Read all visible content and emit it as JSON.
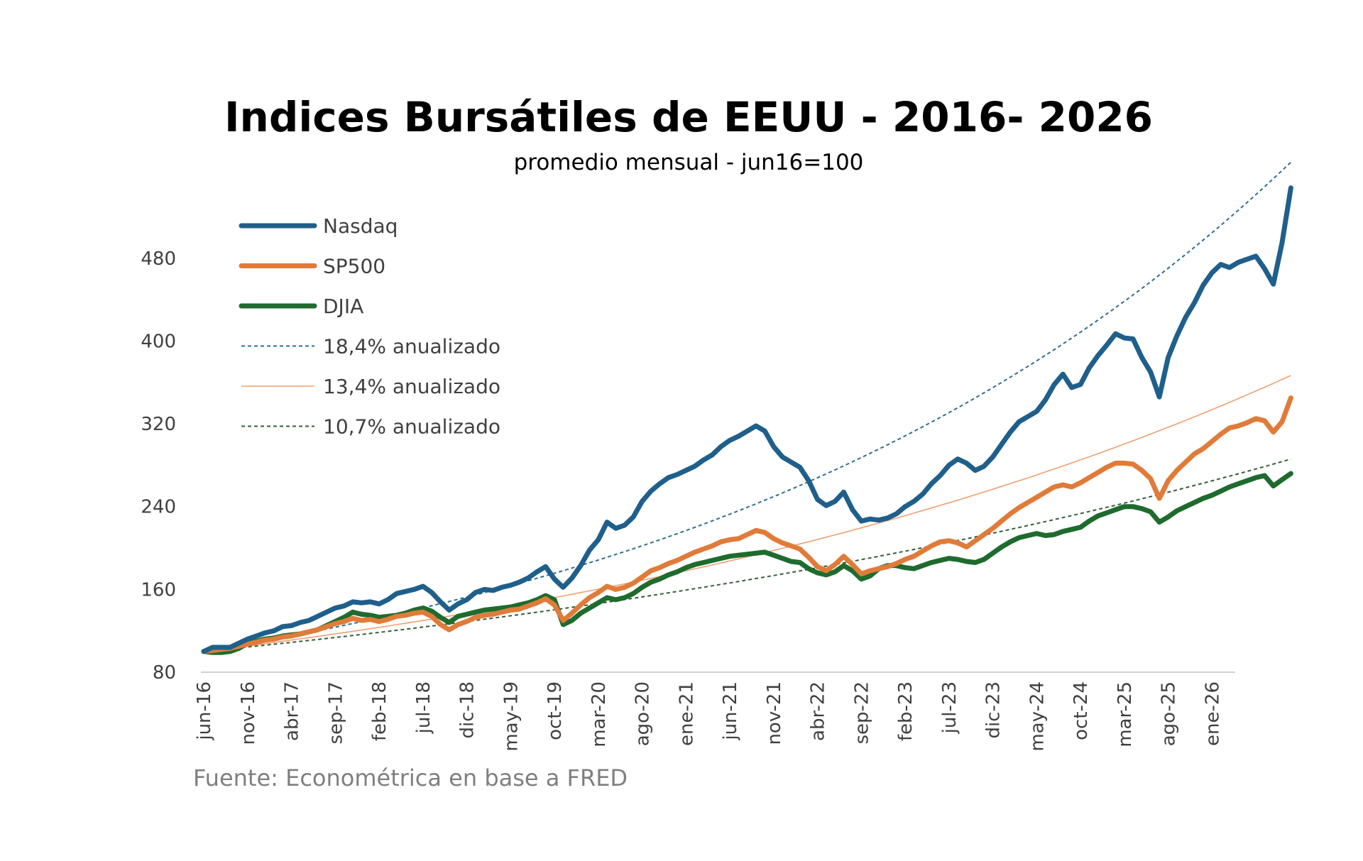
{
  "chart_data": {
    "type": "line",
    "title": "Indices Bursátiles de EEUU - 2016- 2026",
    "subtitle": "promedio mensual - jun16=100",
    "source": "Fuente: Econométrica en base a FRED",
    "x_tick_labels": [
      "jun-16",
      "nov-16",
      "abr-17",
      "sep-17",
      "feb-18",
      "jul-18",
      "dic-18",
      "may-19",
      "oct-19",
      "mar-20",
      "ago-20",
      "ene-21",
      "jun-21",
      "nov-21",
      "abr-22",
      "sep-22",
      "feb-23",
      "jul-23",
      "dic-23",
      "may-24",
      "oct-24",
      "mar-25",
      "ago-25",
      "ene-26"
    ],
    "x_start": "jun-16",
    "x_end": "may-26",
    "y_tick_labels": [
      "80",
      "160",
      "240",
      "320",
      "400",
      "480"
    ],
    "ylim": [
      80,
      550
    ],
    "grid": false,
    "legend_position": "top-left",
    "series": [
      {
        "name": "Nasdaq",
        "color": "#1f5f8b",
        "style": "solid",
        "values": [
          100,
          104,
          104,
          104,
          108,
          112,
          115,
          118,
          120,
          124,
          125,
          128,
          130,
          134,
          138,
          142,
          144,
          148,
          147,
          148,
          146,
          150,
          156,
          158,
          160,
          163,
          157,
          148,
          140,
          146,
          150,
          157,
          160,
          159,
          162,
          164,
          167,
          171,
          177,
          182,
          170,
          162,
          171,
          183,
          198,
          208,
          225,
          219,
          222,
          230,
          245,
          255,
          262,
          268,
          271,
          275,
          279,
          285,
          290,
          298,
          304,
          308,
          313,
          318,
          313,
          298,
          288,
          283,
          278,
          265,
          247,
          241,
          245,
          254,
          237,
          226,
          228,
          227,
          229,
          233,
          240,
          245,
          252,
          262,
          270,
          280,
          286,
          282,
          275,
          279,
          288,
          300,
          312,
          322,
          327,
          332,
          343,
          358,
          368,
          355,
          358,
          374,
          386,
          396,
          407,
          403,
          402,
          384,
          370,
          346,
          384,
          405,
          423,
          437,
          454,
          466,
          474,
          471,
          476,
          479,
          482,
          470,
          455,
          495,
          548
        ]
      },
      {
        "name": "SP500",
        "color": "#e07b39",
        "style": "solid",
        "values": [
          100,
          101,
          102,
          103,
          105,
          107,
          109,
          111,
          112,
          114,
          115,
          117,
          119,
          121,
          124,
          127,
          129,
          132,
          130,
          131,
          129,
          131,
          134,
          135,
          137,
          138,
          134,
          126,
          121,
          126,
          129,
          133,
          135,
          136,
          138,
          140,
          141,
          144,
          147,
          151,
          145,
          130,
          137,
          145,
          152,
          157,
          163,
          160,
          162,
          166,
          172,
          178,
          181,
          185,
          188,
          192,
          196,
          199,
          202,
          206,
          208,
          209,
          213,
          217,
          215,
          209,
          205,
          202,
          199,
          191,
          182,
          178,
          184,
          192,
          184,
          175,
          178,
          180,
          182,
          185,
          189,
          192,
          197,
          202,
          206,
          207,
          205,
          201,
          207,
          213,
          219,
          226,
          233,
          239,
          244,
          249,
          254,
          259,
          261,
          259,
          263,
          268,
          273,
          278,
          282,
          282,
          281,
          275,
          267,
          248,
          265,
          275,
          283,
          291,
          296,
          303,
          310,
          316,
          318,
          321,
          325,
          323,
          312,
          322,
          345
        ]
      },
      {
        "name": "DJIA",
        "color": "#1e6b2e",
        "style": "solid",
        "values": [
          100,
          99,
          99,
          100,
          103,
          108,
          110,
          112,
          113,
          115,
          116,
          117,
          119,
          121,
          125,
          129,
          133,
          138,
          136,
          135,
          133,
          134,
          135,
          137,
          140,
          142,
          139,
          133,
          128,
          134,
          136,
          138,
          140,
          141,
          142,
          143,
          145,
          147,
          150,
          154,
          150,
          126,
          130,
          137,
          142,
          147,
          152,
          150,
          152,
          156,
          162,
          167,
          170,
          174,
          177,
          181,
          184,
          186,
          188,
          190,
          192,
          193,
          194,
          195,
          196,
          193,
          190,
          187,
          186,
          180,
          176,
          174,
          177,
          183,
          178,
          170,
          173,
          180,
          183,
          183,
          181,
          180,
          183,
          186,
          188,
          190,
          189,
          187,
          186,
          189,
          195,
          201,
          206,
          210,
          212,
          214,
          212,
          213,
          216,
          218,
          220,
          226,
          231,
          234,
          237,
          240,
          240,
          238,
          235,
          225,
          230,
          236,
          240,
          244,
          248,
          251,
          255,
          259,
          262,
          265,
          268,
          270,
          260,
          266,
          272
        ]
      },
      {
        "name": "18,4% anualizado",
        "color": "#2e6f8e",
        "style": "dotted",
        "annual_rate_pct": 18.4,
        "start_value": 100
      },
      {
        "name": "13,4% anualizado",
        "color": "#f0a070",
        "style": "thin",
        "annual_rate_pct": 13.4,
        "start_value": 100
      },
      {
        "name": "10,7% anualizado",
        "color": "#355e3b",
        "style": "dotted",
        "annual_rate_pct": 10.7,
        "start_value": 100
      }
    ]
  }
}
